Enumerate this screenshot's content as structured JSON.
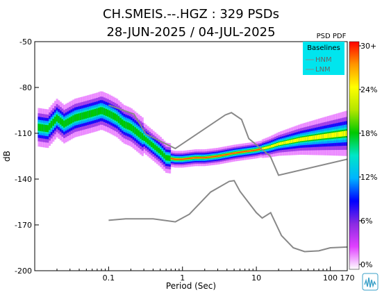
{
  "chart_data": {
    "type": "heatmap",
    "title": "CH.SMEIS.--.HGZ : 329 PSDs",
    "subtitle": "28-JUN-2025 / 04-JUL-2025",
    "xlabel": "Period (Sec)",
    "ylabel": "dB",
    "x_scale": "log",
    "xlim": [
      0.01,
      170
    ],
    "ylim": [
      -200,
      -50
    ],
    "x_ticks": [
      {
        "value": 0.1,
        "label": "0.1"
      },
      {
        "value": 1,
        "label": "1"
      },
      {
        "value": 10,
        "label": "10"
      },
      {
        "value": 100,
        "label": "100"
      },
      {
        "value": 170,
        "label": "170"
      }
    ],
    "y_ticks": [
      {
        "value": -50,
        "label": "-50"
      },
      {
        "value": -80,
        "label": "-80"
      },
      {
        "value": -110,
        "label": "-110"
      },
      {
        "value": -140,
        "label": "-140"
      },
      {
        "value": -170,
        "label": "-170"
      },
      {
        "value": -200,
        "label": "-200"
      }
    ],
    "colorbar": {
      "title": "PSD PDF",
      "ticks": [
        "30+",
        "24%",
        "18%",
        "12%",
        "6%",
        "0%"
      ],
      "colors": [
        "#ffffff",
        "#e040ff",
        "#8a2be2",
        "#0000ff",
        "#00b4ff",
        "#00e6c8",
        "#00c800",
        "#b4e600",
        "#ffff00",
        "#ff9600",
        "#ff0000"
      ]
    },
    "legend": {
      "title": "Baselines",
      "placement": "top-right",
      "entries": [
        "HNM",
        "LNM"
      ]
    },
    "baselines": [
      {
        "name": "HNM",
        "color": "#888888",
        "points": [
          [
            0.1,
            -91.5
          ],
          [
            0.22,
            -97.4
          ],
          [
            0.32,
            -110.5
          ],
          [
            0.8,
            -120
          ],
          [
            3.8,
            -98
          ],
          [
            4.6,
            -96.5
          ],
          [
            6.3,
            -101
          ],
          [
            7.9,
            -113.5
          ],
          [
            15.4,
            -125
          ],
          [
            20,
            -137.5
          ],
          [
            170,
            -127
          ]
        ]
      },
      {
        "name": "LNM",
        "color": "#888888",
        "points": [
          [
            0.1,
            -167
          ],
          [
            0.17,
            -166
          ],
          [
            0.4,
            -166
          ],
          [
            0.8,
            -168
          ],
          [
            1.24,
            -163
          ],
          [
            2.4,
            -148.5
          ],
          [
            4.3,
            -141.5
          ],
          [
            5,
            -141
          ],
          [
            6,
            -148
          ],
          [
            10,
            -162
          ],
          [
            12,
            -165.5
          ],
          [
            15.6,
            -162
          ],
          [
            21.9,
            -177
          ],
          [
            31.6,
            -185
          ],
          [
            45,
            -187.5
          ],
          [
            70,
            -187
          ],
          [
            100,
            -185
          ],
          [
            170,
            -184.5
          ]
        ]
      }
    ],
    "pdf_mode": [
      [
        0.011,
        -106
      ],
      [
        0.015,
        -107
      ],
      [
        0.02,
        -100
      ],
      [
        0.025,
        -104
      ],
      [
        0.035,
        -100
      ],
      [
        0.05,
        -98
      ],
      [
        0.07,
        -96
      ],
      [
        0.08,
        -95
      ],
      [
        0.1,
        -97
      ],
      [
        0.13,
        -100
      ],
      [
        0.16,
        -104
      ],
      [
        0.2,
        -106
      ],
      [
        0.3,
        -113
      ],
      [
        0.5,
        -122
      ],
      [
        0.6,
        -126
      ],
      [
        0.8,
        -127
      ],
      [
        1,
        -127
      ],
      [
        1.5,
        -126
      ],
      [
        2,
        -126
      ],
      [
        3,
        -125
      ],
      [
        5,
        -123
      ],
      [
        7,
        -122
      ],
      [
        10,
        -121
      ],
      [
        15,
        -119
      ],
      [
        20,
        -117
      ],
      [
        40,
        -114
      ],
      [
        80,
        -112
      ],
      [
        170,
        -110
      ]
    ]
  }
}
